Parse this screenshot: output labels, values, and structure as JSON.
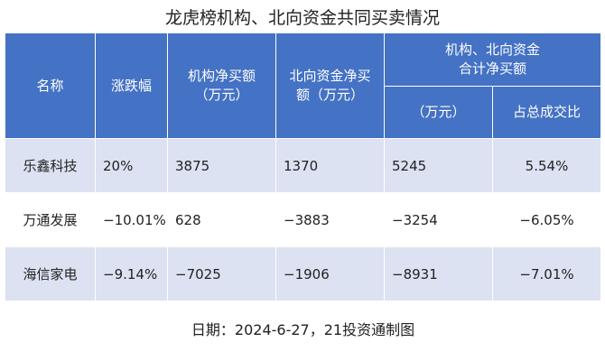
{
  "header": {
    "title": "龙虎榜机构、北向资金共同买卖情况"
  },
  "table": {
    "columns": [
      "名称",
      "涨跌幅",
      "机构净买额（万元）",
      "北向资金净买额（万元）"
    ],
    "merged_header": [
      "机构、北向资金",
      "合计净买额"
    ],
    "sub_headers": [
      "（万元）",
      "占总成交比"
    ],
    "rows": [
      [
        "乐鑫科技",
        "20%",
        "3875",
        "1370",
        "5245",
        "5.54%"
      ],
      [
        "万通发展",
        "−10.01%",
        "628",
        "−3883",
        "−3254",
        "−6.05%"
      ],
      [
        "海信家电",
        "−9.14%",
        "−7025",
        "−1906",
        "−8931",
        "−7.01%"
      ]
    ]
  },
  "footer": {
    "note": "日期：2024-6-27，21投资通制图"
  }
}
